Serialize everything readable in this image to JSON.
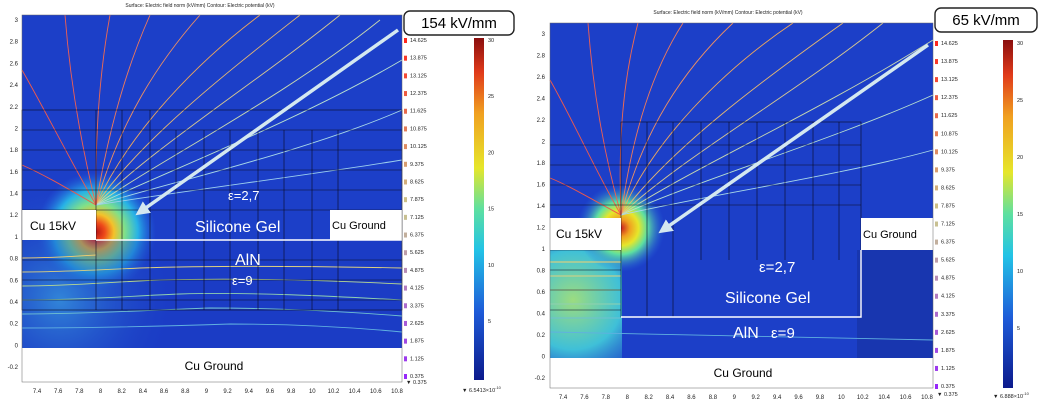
{
  "panels": [
    {
      "id": "left",
      "title": "Surface: Electric field norm (kV/mm)  Contour: Electric potential (kV)",
      "callout": "154 kV/mm",
      "labels": {
        "source": "Cu 15kV",
        "ground_right": "Cu Ground",
        "ground_bottom": "Cu Ground",
        "eps_gel": "ε=2,7",
        "gel": "Silicone Gel",
        "aln": "AlN",
        "eps_aln": "ε=9"
      },
      "y_ticks": [
        "3",
        "2.8",
        "2.6",
        "2.4",
        "2.2",
        "2",
        "1.8",
        "1.6",
        "1.4",
        "1.2",
        "1",
        "0.8",
        "0.6",
        "0.4",
        "0.2",
        "0",
        "-0.2"
      ],
      "x_ticks": [
        "7.4",
        "7.6",
        "7.8",
        "8",
        "8.2",
        "8.4",
        "8.6",
        "8.8",
        "9",
        "9.2",
        "9.4",
        "9.6",
        "9.8",
        "10",
        "10.2",
        "10.4",
        "10.6",
        "10.8"
      ],
      "potential_legend": [
        "14.625",
        "13.875",
        "13.125",
        "12.375",
        "11.625",
        "10.875",
        "10.125",
        "9.375",
        "8.625",
        "7.875",
        "7.125",
        "6.375",
        "5.625",
        "4.875",
        "4.125",
        "3.375",
        "2.625",
        "1.875",
        "1.125",
        "0.375"
      ],
      "potential_min": "▼ 0.375",
      "field_ticks": [
        "30",
        "25",
        "20",
        "15",
        "10",
        "5"
      ],
      "field_min_mantissa": "▼ 6.5413×10",
      "field_min_exp": "-10"
    },
    {
      "id": "right",
      "title": "Surface: Electric field norm (kV/mm)  Contour: Electric potential (kV)",
      "callout": "65 kV/mm",
      "labels": {
        "source": "Cu 15kV",
        "ground_right": "Cu Ground",
        "ground_bottom": "Cu Ground",
        "eps_gel": "ε=2,7",
        "gel": "Silicone Gel",
        "aln": "AlN",
        "eps_aln": "ε=9"
      },
      "y_ticks": [
        "3",
        "2.8",
        "2.6",
        "2.4",
        "2.2",
        "2",
        "1.8",
        "1.6",
        "1.4",
        "1.2",
        "1",
        "0.8",
        "0.6",
        "0.4",
        "0.2",
        "0",
        "-0.2"
      ],
      "x_ticks": [
        "7.4",
        "7.6",
        "7.8",
        "8",
        "8.2",
        "8.4",
        "8.6",
        "8.8",
        "9",
        "9.2",
        "9.4",
        "9.6",
        "9.8",
        "10",
        "10.2",
        "10.4",
        "10.6",
        "10.8"
      ],
      "potential_legend": [
        "14.625",
        "13.875",
        "13.125",
        "12.375",
        "11.625",
        "10.875",
        "10.125",
        "9.375",
        "8.625",
        "7.875",
        "7.125",
        "6.375",
        "5.625",
        "4.875",
        "4.125",
        "3.375",
        "2.625",
        "1.875",
        "1.125",
        "0.375"
      ],
      "potential_min": "▼ 0.375",
      "field_ticks": [
        "30",
        "25",
        "20",
        "15",
        "10",
        "5"
      ],
      "field_min_mantissa": "▼ 6.888×10",
      "field_min_exp": "-10"
    }
  ],
  "colors": {
    "field_low": "#1b2fa8",
    "field_high": "#c81e1e",
    "annotation_arrow": "#cfe3ec"
  }
}
